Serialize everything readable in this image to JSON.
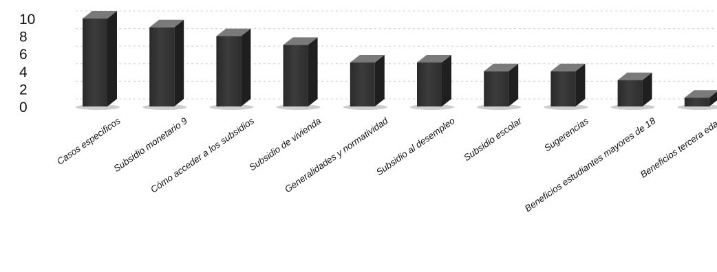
{
  "chart_data": {
    "type": "bar",
    "title": "",
    "xlabel": "",
    "ylabel": "",
    "ylim": [
      0,
      10
    ],
    "yticks": [
      0,
      2,
      4,
      6,
      8,
      10
    ],
    "grid": true,
    "style": "3d-column",
    "colors": {
      "bar_front": "#3c3c3c",
      "bar_top": "#7a7a7a",
      "bar_side": "#1f1f1f",
      "grid": "#cfcfcf"
    },
    "categories": [
      "Casos especificos",
      "Subsidio monetario 9",
      "Cómo acceder a los subsidios",
      "Subsidio de vivienda",
      "Generalidades y normatividad",
      "Subsidio al desempleo",
      "Subsidio escolar",
      "Sugerencias",
      "Beneficios estudiantes mayores de 18",
      "Beneficios tercera edad"
    ],
    "values": [
      10,
      9,
      8,
      7,
      5,
      5,
      4,
      4,
      3,
      1
    ]
  }
}
